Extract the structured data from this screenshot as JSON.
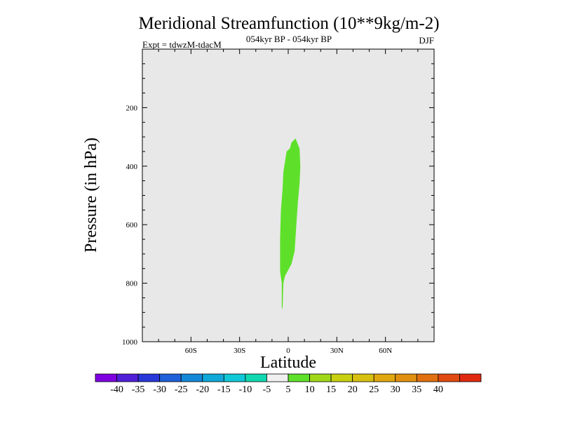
{
  "chart_data": {
    "type": "contour",
    "title": "Meridional Streamfunction (10**9kg/m-2)",
    "subtitle_center": "054kyr BP - 054kyr BP",
    "subtitle_left": "Expt = tdwzM-tdacM",
    "subtitle_right": "DJF",
    "xlabel": "Latitude",
    "ylabel": "Pressure (in hPa)",
    "xlim": [
      -90,
      90
    ],
    "ylim": [
      1000,
      0
    ],
    "x_ticks": [
      {
        "value": -60,
        "label": "60S"
      },
      {
        "value": -30,
        "label": "30S"
      },
      {
        "value": 0,
        "label": "0"
      },
      {
        "value": 30,
        "label": "30N"
      },
      {
        "value": 60,
        "label": "60N"
      }
    ],
    "y_ticks": [
      {
        "value": 200,
        "label": "200"
      },
      {
        "value": 400,
        "label": "400"
      },
      {
        "value": 600,
        "label": "600"
      },
      {
        "value": 800,
        "label": "800"
      },
      {
        "value": 1000,
        "label": "1000"
      }
    ],
    "background_color": "#e8e8e8",
    "contour_regions": [
      {
        "level_range": [
          5,
          10
        ],
        "color": "#5ee02a",
        "outline": [
          [
            4.5,
            305
          ],
          [
            7,
            340
          ],
          [
            7.5,
            400
          ],
          [
            7,
            460
          ],
          [
            6,
            520
          ],
          [
            5,
            600
          ],
          [
            4,
            690
          ],
          [
            2,
            735
          ],
          [
            -2,
            775
          ],
          [
            -3,
            800
          ],
          [
            -3.5,
            890
          ],
          [
            -4,
            880
          ],
          [
            -4,
            800
          ],
          [
            -5,
            760
          ],
          [
            -5,
            650
          ],
          [
            -4.5,
            550
          ],
          [
            -3.5,
            480
          ],
          [
            -3,
            420
          ],
          [
            -1,
            350
          ],
          [
            1,
            340
          ],
          [
            2,
            320
          ]
        ]
      }
    ],
    "colorbar": {
      "colors": [
        "#7f00e0",
        "#5020d8",
        "#2838d8",
        "#2060d8",
        "#1488d8",
        "#10a8d8",
        "#10c8d8",
        "#10d8b0",
        "#f0f0f0",
        "#5ee02a",
        "#a0d818",
        "#c8d010",
        "#d8c010",
        "#e0a810",
        "#e09010",
        "#e07010",
        "#e04a10",
        "#e02a10"
      ],
      "labels": [
        "-40",
        "-35",
        "-30",
        "-25",
        "-20",
        "-15",
        "-10",
        "-5",
        "5",
        "10",
        "15",
        "20",
        "25",
        "30",
        "35",
        "40"
      ]
    }
  }
}
